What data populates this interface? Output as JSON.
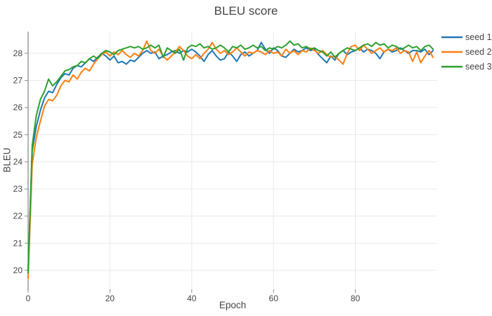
{
  "chart_data": {
    "type": "line",
    "title": "BLEU score",
    "xlabel": "Epoch",
    "ylabel": "BLEU",
    "xlim": [
      0,
      100
    ],
    "ylim": [
      19.3,
      28.8
    ],
    "xticks": [
      0,
      20,
      40,
      60,
      80
    ],
    "yticks": [
      20,
      21,
      22,
      23,
      24,
      25,
      26,
      27,
      28
    ],
    "grid": true,
    "legend_position": "top-right-outside",
    "colors": {
      "background": "#ffffff",
      "grid": "#e9e9e9",
      "axis": "#8c8c8c",
      "text": "#444444"
    },
    "x": [
      0,
      1,
      2,
      3,
      4,
      5,
      6,
      7,
      8,
      9,
      10,
      11,
      12,
      13,
      14,
      15,
      16,
      17,
      18,
      19,
      20,
      21,
      22,
      23,
      24,
      25,
      26,
      27,
      28,
      29,
      30,
      31,
      32,
      33,
      34,
      35,
      36,
      37,
      38,
      39,
      40,
      41,
      42,
      43,
      44,
      45,
      46,
      47,
      48,
      49,
      50,
      51,
      52,
      53,
      54,
      55,
      56,
      57,
      58,
      59,
      60,
      61,
      62,
      63,
      64,
      65,
      66,
      67,
      68,
      69,
      70,
      71,
      72,
      73,
      74,
      75,
      76,
      77,
      78,
      79,
      80,
      81,
      82,
      83,
      84,
      85,
      86,
      87,
      88,
      89,
      90,
      91,
      92,
      93,
      94,
      95,
      96,
      97,
      98,
      99
    ],
    "series": [
      {
        "name": "seed 1",
        "color": "#1f77b4",
        "values": [
          20.0,
          24.4,
          25.3,
          25.9,
          26.35,
          26.6,
          26.55,
          26.85,
          27.1,
          27.25,
          27.2,
          27.45,
          27.55,
          27.5,
          27.65,
          27.8,
          27.7,
          27.85,
          28.0,
          27.9,
          27.75,
          27.9,
          27.65,
          27.7,
          27.6,
          27.75,
          27.7,
          27.85,
          28.0,
          28.1,
          28.0,
          28.05,
          27.8,
          27.9,
          27.95,
          28.05,
          28.1,
          28.0,
          28.1,
          28.05,
          28.15,
          28.05,
          27.9,
          27.7,
          27.95,
          28.1,
          27.9,
          27.75,
          27.8,
          28.05,
          27.9,
          27.7,
          27.95,
          28.05,
          27.9,
          28.0,
          28.1,
          28.4,
          28.15,
          28.0,
          28.2,
          28.1,
          27.9,
          27.85,
          28.0,
          28.15,
          28.05,
          28.1,
          28.2,
          28.1,
          28.15,
          27.95,
          27.8,
          27.65,
          27.9,
          27.75,
          28.0,
          28.1,
          27.95,
          28.05,
          28.1,
          28.2,
          28.05,
          28.15,
          28.1,
          28.0,
          27.8,
          28.05,
          28.15,
          28.05,
          28.1,
          28.2,
          28.1,
          28.0,
          28.1,
          28.1,
          28.05,
          28.15,
          27.95,
          28.1
        ]
      },
      {
        "name": "seed 2",
        "color": "#ff7f0e",
        "values": [
          19.7,
          23.9,
          24.9,
          25.5,
          26.05,
          26.3,
          26.25,
          26.45,
          26.8,
          27.0,
          26.95,
          27.2,
          27.05,
          27.3,
          27.45,
          27.35,
          27.6,
          27.8,
          27.95,
          28.05,
          27.9,
          28.05,
          27.95,
          28.1,
          27.95,
          27.85,
          28.0,
          27.9,
          28.1,
          28.45,
          28.1,
          28.0,
          28.15,
          27.9,
          27.75,
          27.9,
          28.05,
          28.25,
          28.1,
          27.9,
          27.8,
          27.95,
          27.8,
          28.0,
          28.15,
          28.4,
          28.15,
          28.0,
          28.1,
          27.95,
          28.05,
          28.2,
          28.05,
          27.9,
          28.05,
          28.0,
          28.1,
          28.05,
          27.95,
          28.1,
          28.0,
          28.05,
          27.9,
          28.15,
          28.0,
          28.1,
          27.95,
          28.1,
          28.05,
          28.2,
          28.1,
          28.0,
          28.1,
          27.95,
          27.85,
          27.9,
          27.75,
          27.6,
          28.0,
          28.25,
          28.3,
          28.1,
          28.3,
          28.15,
          28.0,
          28.1,
          28.2,
          28.05,
          28.15,
          28.1,
          28.2,
          28.0,
          28.1,
          28.05,
          27.7,
          28.05,
          27.65,
          27.9,
          28.1,
          27.85
        ]
      },
      {
        "name": "seed 3",
        "color": "#2ca02c",
        "values": [
          19.9,
          24.6,
          25.7,
          26.3,
          26.6,
          27.05,
          26.8,
          26.95,
          27.15,
          27.35,
          27.4,
          27.5,
          27.55,
          27.7,
          27.65,
          27.8,
          27.9,
          27.8,
          28.0,
          28.1,
          28.05,
          27.95,
          28.1,
          28.15,
          28.2,
          28.25,
          28.2,
          28.25,
          28.15,
          28.2,
          28.3,
          28.2,
          28.3,
          27.85,
          28.2,
          28.1,
          28.0,
          28.15,
          27.75,
          28.2,
          28.3,
          28.25,
          28.35,
          28.2,
          28.25,
          28.15,
          28.2,
          28.3,
          28.2,
          28.05,
          28.25,
          28.2,
          28.3,
          28.15,
          28.2,
          28.3,
          28.2,
          28.25,
          28.1,
          28.2,
          28.15,
          28.25,
          28.2,
          28.3,
          28.45,
          28.3,
          28.35,
          28.2,
          28.25,
          28.15,
          28.2,
          28.1,
          28.05,
          27.9,
          28.05,
          27.85,
          28.0,
          28.1,
          28.2,
          28.15,
          28.1,
          28.2,
          28.3,
          28.35,
          28.25,
          28.4,
          28.3,
          28.35,
          28.2,
          28.3,
          28.25,
          28.15,
          28.2,
          28.3,
          28.2,
          28.25,
          28.1,
          28.25,
          28.3,
          28.15
        ]
      }
    ]
  }
}
